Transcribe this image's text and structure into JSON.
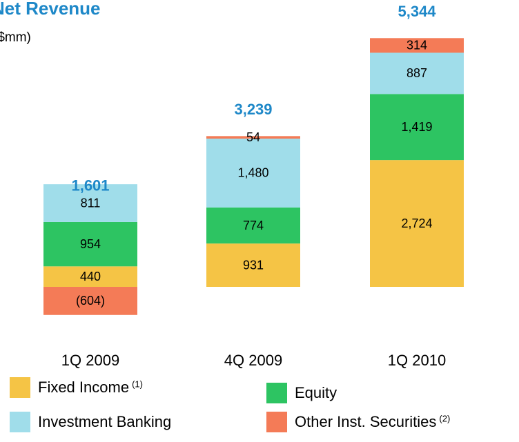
{
  "chart_data": {
    "type": "stacked_bar",
    "title": "Net Revenue",
    "subtitle": "($mm)",
    "categories": [
      "1Q 2009",
      "4Q 2009",
      "1Q 2010"
    ],
    "series": [
      {
        "name": "Fixed Income",
        "note": "(1)",
        "color": "#f5c445",
        "values": [
          440,
          931,
          2724
        ],
        "value_labels": [
          "440",
          "931",
          "2,724"
        ]
      },
      {
        "name": "Equity",
        "color": "#2dc462",
        "values": [
          954,
          774,
          1419
        ],
        "value_labels": [
          "954",
          "774",
          "1,419"
        ]
      },
      {
        "name": "Investment Banking",
        "color": "#a0ddea",
        "values": [
          811,
          1480,
          887
        ],
        "value_labels": [
          "811",
          "1,480",
          "887"
        ]
      },
      {
        "name": "Other Inst. Securities",
        "note": "(2)",
        "color": "#f47b57",
        "values": [
          -604,
          54,
          314
        ],
        "value_labels": [
          "(604)",
          "54",
          "314"
        ]
      }
    ],
    "totals": [
      1601,
      3239,
      5344
    ],
    "total_labels": [
      "1,601",
      "3,239",
      "5,344"
    ]
  }
}
